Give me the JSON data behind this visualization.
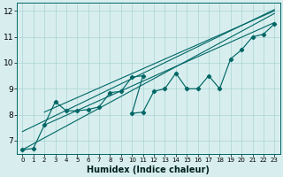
{
  "xlabel": "Humidex (Indice chaleur)",
  "xlim": [
    -0.5,
    23.5
  ],
  "ylim": [
    6.5,
    12.3
  ],
  "yticks": [
    7,
    8,
    9,
    10,
    11,
    12
  ],
  "xticks": [
    0,
    1,
    2,
    3,
    4,
    5,
    6,
    7,
    8,
    9,
    10,
    11,
    12,
    13,
    14,
    15,
    16,
    17,
    18,
    19,
    20,
    21,
    22,
    23
  ],
  "bg_color": "#d8eeee",
  "line_color": "#006666",
  "grid_color": "#aad4d4",
  "envelope_lines": [
    {
      "x": [
        0,
        23
      ],
      "y": [
        6.65,
        11.9
      ]
    },
    {
      "x": [
        0,
        23
      ],
      "y": [
        7.35,
        12.05
      ]
    },
    {
      "x": [
        2,
        23
      ],
      "y": [
        7.6,
        11.55
      ]
    },
    {
      "x": [
        2,
        23
      ],
      "y": [
        8.1,
        12.0
      ]
    }
  ],
  "data_x": [
    0,
    1,
    2,
    3,
    4,
    5,
    6,
    7,
    8,
    9,
    10,
    11,
    10,
    11,
    12,
    13,
    14,
    15,
    16,
    17,
    18,
    19,
    20,
    21,
    22,
    23
  ],
  "data_y": [
    6.65,
    6.7,
    7.6,
    8.5,
    8.15,
    8.15,
    8.2,
    8.3,
    8.85,
    8.9,
    9.45,
    9.5,
    8.05,
    8.1,
    8.9,
    9.0,
    9.6,
    9.0,
    9.0,
    9.5,
    9.0,
    10.15,
    10.5,
    11.0,
    11.1,
    11.5
  ]
}
